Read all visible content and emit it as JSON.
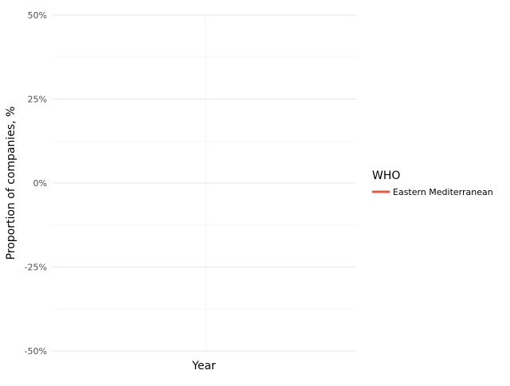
{
  "chart_data": {
    "type": "line",
    "title": "",
    "xlabel": "Year",
    "ylabel": "Proportion of companies, %",
    "ylim": [
      -50,
      50
    ],
    "y_ticks": [
      {
        "value": 50,
        "label": "50%"
      },
      {
        "value": 25,
        "label": "25%"
      },
      {
        "value": 0,
        "label": "0%"
      },
      {
        "value": -25,
        "label": "-25%"
      },
      {
        "value": -50,
        "label": "-50%"
      }
    ],
    "grid": true,
    "legend": {
      "title": "WHO",
      "placement": "right"
    },
    "series": [
      {
        "name": "Eastern Mediterranean",
        "color": "#e15a4a",
        "values": []
      }
    ]
  }
}
